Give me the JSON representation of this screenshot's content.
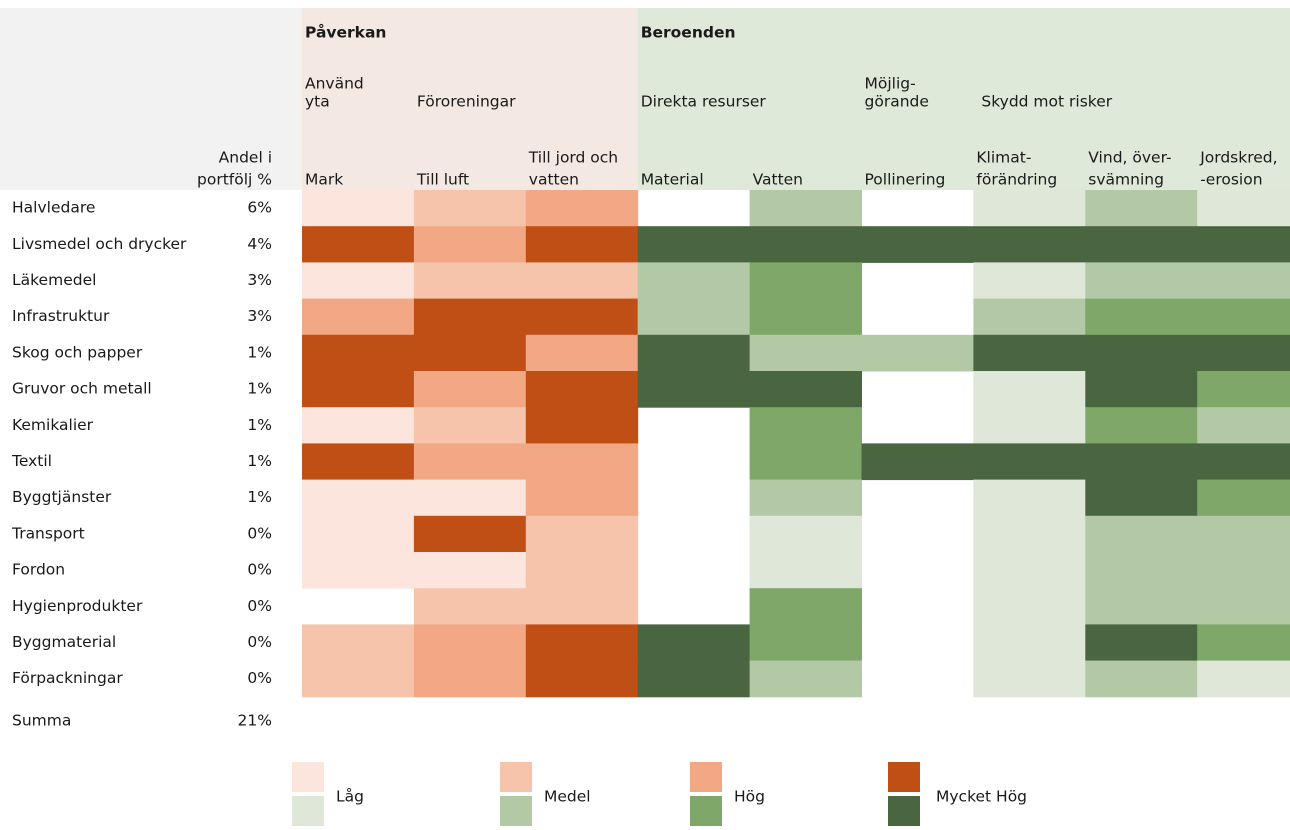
{
  "chart_data": {
    "type": "heatmap",
    "share_header": [
      "Andel i",
      "portfölj %"
    ],
    "groups": [
      {
        "name": "Påverkan",
        "span": 3,
        "background": "#f3e8e2",
        "colors": [
          "#fbe5dc",
          "#f6c4aa",
          "#f2a884",
          "#c04f15"
        ]
      },
      {
        "name": "Beroenden",
        "span": 6,
        "background": "#dfe9d9",
        "colors": [
          "#dfe7d8",
          "#b3c9a6",
          "#7fa76a",
          "#4a6640"
        ]
      }
    ],
    "subgroups": [
      {
        "lines": [
          "Använd",
          "yta"
        ],
        "span": 1
      },
      {
        "lines": [
          "Föroreningar"
        ],
        "span": 2
      },
      {
        "lines": [
          "Direkta resurser"
        ],
        "span": 2
      },
      {
        "lines": [
          "Möjlig-",
          "görande"
        ],
        "span": 1
      },
      {
        "lines": [
          "Skydd mot risker"
        ],
        "span": 3
      }
    ],
    "columns": [
      [
        "Mark"
      ],
      [
        "Till luft"
      ],
      [
        "Till jord och",
        "vatten"
      ],
      [
        "Material"
      ],
      [
        "Vatten"
      ],
      [
        "Pollinering"
      ],
      [
        "Klimat-",
        "förändring"
      ],
      [
        "Vind, över-",
        "svämning"
      ],
      [
        "Jordskred,",
        "-erosion"
      ]
    ],
    "categories": [
      "Halvledare",
      "Livsmedel och drycker",
      "Läkemedel",
      "Infrastruktur",
      "Skog och papper",
      "Gruvor och metall",
      "Kemikalier",
      "Textil",
      "Byggtjänster",
      "Transport",
      "Fordon",
      "Hygienprodukter",
      "Byggmaterial",
      "Förpackningar"
    ],
    "share": [
      6,
      4,
      3,
      3,
      1,
      1,
      1,
      1,
      1,
      0,
      0,
      0,
      0,
      0
    ],
    "share_labels": [
      "6%",
      "4%",
      "3%",
      "3%",
      "1%",
      "1%",
      "1%",
      "1%",
      "1%",
      "0%",
      "0%",
      "0%",
      "0%",
      "0%"
    ],
    "total_label": "Summa",
    "total": 21,
    "total_value_label": "21%",
    "values": [
      [
        1,
        2,
        3,
        0,
        2,
        0,
        1,
        2,
        1
      ],
      [
        4,
        3,
        4,
        4,
        4,
        4,
        4,
        4,
        4
      ],
      [
        1,
        2,
        2,
        2,
        3,
        0,
        1,
        2,
        2
      ],
      [
        3,
        4,
        4,
        2,
        3,
        0,
        2,
        3,
        3
      ],
      [
        4,
        4,
        3,
        4,
        2,
        2,
        4,
        4,
        4
      ],
      [
        4,
        3,
        4,
        4,
        4,
        0,
        1,
        4,
        3
      ],
      [
        1,
        2,
        4,
        0,
        3,
        0,
        1,
        3,
        2
      ],
      [
        4,
        3,
        3,
        0,
        3,
        4,
        4,
        4,
        4
      ],
      [
        1,
        1,
        3,
        0,
        2,
        0,
        1,
        4,
        3
      ],
      [
        1,
        4,
        2,
        0,
        1,
        0,
        1,
        2,
        2
      ],
      [
        1,
        1,
        2,
        0,
        1,
        0,
        1,
        2,
        2
      ],
      [
        0,
        2,
        2,
        0,
        3,
        0,
        1,
        2,
        2
      ],
      [
        2,
        3,
        4,
        4,
        3,
        0,
        1,
        4,
        3
      ],
      [
        2,
        3,
        4,
        4,
        2,
        0,
        1,
        2,
        1
      ]
    ],
    "legend": [
      "Låg",
      "Medel",
      "Hög",
      "Mycket Hög"
    ],
    "label_background": "#f2f2f2"
  }
}
